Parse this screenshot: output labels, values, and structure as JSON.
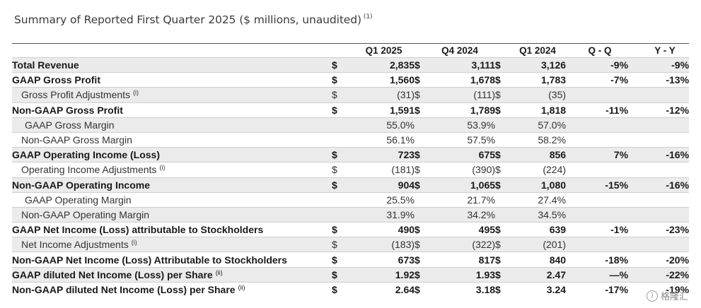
{
  "title": "Summary of Reported First Quarter 2025 ($ millions, unaudited)",
  "title_footnote": "(1)",
  "columns": [
    "Q1 2025",
    "Q4 2024",
    "Q1 2024",
    "Q - Q",
    "Y - Y"
  ],
  "rows": [
    {
      "label": "Total Revenue",
      "fn": "",
      "style": "bold",
      "shade": true,
      "cur": [
        "$",
        "$",
        "$"
      ],
      "vals": [
        "2,835",
        "3,111",
        "3,126"
      ],
      "qq": "-9%",
      "yy": "-9%"
    },
    {
      "label": "GAAP Gross Profit",
      "fn": "",
      "style": "bold",
      "shade": false,
      "cur": [
        "$",
        "$",
        "$"
      ],
      "vals": [
        "1,560",
        "1,678",
        "1,783"
      ],
      "qq": "-7%",
      "yy": "-13%"
    },
    {
      "label": "Gross Profit Adjustments",
      "fn": "(i)",
      "style": "sub",
      "shade": true,
      "cur": [
        "$",
        "$",
        "$"
      ],
      "vals": [
        "(31)",
        "(111)",
        "(35)"
      ],
      "qq": "",
      "yy": ""
    },
    {
      "label": "Non-GAAP Gross Profit",
      "fn": "",
      "style": "bold",
      "shade": false,
      "cur": [
        "$",
        "$",
        "$"
      ],
      "vals": [
        "1,591",
        "1,789",
        "1,818"
      ],
      "qq": "-11%",
      "yy": "-12%"
    },
    {
      "label": "GAAP Gross Margin",
      "fn": "",
      "style": "sub2",
      "shade": true,
      "cur": [
        "",
        "",
        ""
      ],
      "vals": [
        "55.0%",
        "53.9%",
        "57.0%"
      ],
      "qq": "",
      "yy": ""
    },
    {
      "label": "Non-GAAP Gross Margin",
      "fn": "",
      "style": "sub",
      "shade": false,
      "cur": [
        "",
        "",
        ""
      ],
      "vals": [
        "56.1%",
        "57.5%",
        "58.2%"
      ],
      "qq": "",
      "yy": ""
    },
    {
      "label": "GAAP Operating Income (Loss)",
      "fn": "",
      "style": "bold",
      "shade": true,
      "cur": [
        "$",
        "$",
        "$"
      ],
      "vals": [
        "723",
        "675",
        "856"
      ],
      "qq": "7%",
      "yy": "-16%"
    },
    {
      "label": "Operating Income Adjustments",
      "fn": "(i)",
      "style": "sub",
      "shade": false,
      "cur": [
        "$",
        "$",
        "$"
      ],
      "vals": [
        "(181)",
        "(390)",
        "(224)"
      ],
      "qq": "",
      "yy": ""
    },
    {
      "label": "Non-GAAP Operating Income",
      "fn": "",
      "style": "bold",
      "shade": true,
      "cur": [
        "$",
        "$",
        "$"
      ],
      "vals": [
        "904",
        "1,065",
        "1,080"
      ],
      "qq": "-15%",
      "yy": "-16%"
    },
    {
      "label": "GAAP Operating Margin",
      "fn": "",
      "style": "sub2",
      "shade": false,
      "cur": [
        "",
        "",
        ""
      ],
      "vals": [
        "25.5%",
        "21.7%",
        "27.4%"
      ],
      "qq": "",
      "yy": ""
    },
    {
      "label": "Non-GAAP Operating Margin",
      "fn": "",
      "style": "sub",
      "shade": true,
      "cur": [
        "",
        "",
        ""
      ],
      "vals": [
        "31.9%",
        "34.2%",
        "34.5%"
      ],
      "qq": "",
      "yy": ""
    },
    {
      "label": "GAAP Net Income (Loss) attributable to Stockholders",
      "fn": "",
      "style": "bold",
      "shade": false,
      "cur": [
        "$",
        "$",
        "$"
      ],
      "vals": [
        "490",
        "495",
        "639"
      ],
      "qq": "-1%",
      "yy": "-23%"
    },
    {
      "label": "Net Income Adjustments",
      "fn": "(i)",
      "style": "sub",
      "shade": true,
      "cur": [
        "$",
        "$",
        "$"
      ],
      "vals": [
        "(183)",
        "(322)",
        "(201)"
      ],
      "qq": "",
      "yy": ""
    },
    {
      "label": "Non-GAAP Net Income (Loss) Attributable to Stockholders",
      "fn": "",
      "style": "bold",
      "shade": false,
      "cur": [
        "$",
        "$",
        "$"
      ],
      "vals": [
        "673",
        "817",
        "840"
      ],
      "qq": "-18%",
      "yy": "-20%"
    },
    {
      "label": "GAAP diluted Net Income (Loss) per Share",
      "fn": "(ii)",
      "style": "bold",
      "shade": true,
      "cur": [
        "$",
        "$",
        "$"
      ],
      "vals": [
        "1.92",
        "1.93",
        "2.47"
      ],
      "qq": "—%",
      "yy": "-22%"
    },
    {
      "label": "Non-GAAP diluted Net Income (Loss) per Share",
      "fn": "(ii)",
      "style": "bold",
      "shade": false,
      "cur": [
        "$",
        "$",
        "$"
      ],
      "vals": [
        "2.64",
        "3.18",
        "3.24"
      ],
      "qq": "-17%",
      "yy": "-19%"
    }
  ],
  "watermark": {
    "text": "格隆汇",
    "icon": "watermark-logo-icon"
  }
}
